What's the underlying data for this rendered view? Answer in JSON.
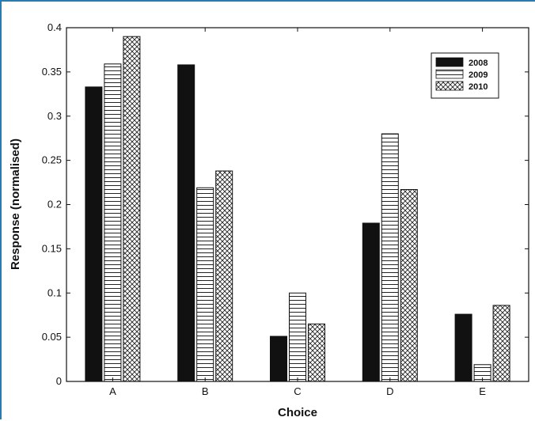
{
  "chart_data": {
    "type": "bar",
    "xlabel": "Choice",
    "ylabel": "Response (normalised)",
    "categories": [
      "A",
      "B",
      "C",
      "D",
      "E"
    ],
    "ylim": [
      0,
      0.4
    ],
    "yticks": [
      0,
      0.05,
      0.1,
      0.15,
      0.2,
      0.25,
      0.3,
      0.35,
      0.4
    ],
    "ytick_labels": [
      "0",
      "0.05",
      "0.1",
      "0.15",
      "0.2",
      "0.25",
      "0.3",
      "0.35",
      "0.4"
    ],
    "grid": false,
    "legend_position": "top-right",
    "series": [
      {
        "name": "2008",
        "pattern": "solid",
        "color": "#111111",
        "values": [
          0.333,
          0.358,
          0.051,
          0.179,
          0.076
        ]
      },
      {
        "name": "2009",
        "pattern": "horizontal-lines",
        "color": "#ffffff",
        "values": [
          0.359,
          0.219,
          0.1,
          0.28,
          0.019
        ]
      },
      {
        "name": "2010",
        "pattern": "crosshatch",
        "color": "#ffffff",
        "values": [
          0.39,
          0.238,
          0.065,
          0.217,
          0.086
        ]
      }
    ]
  }
}
